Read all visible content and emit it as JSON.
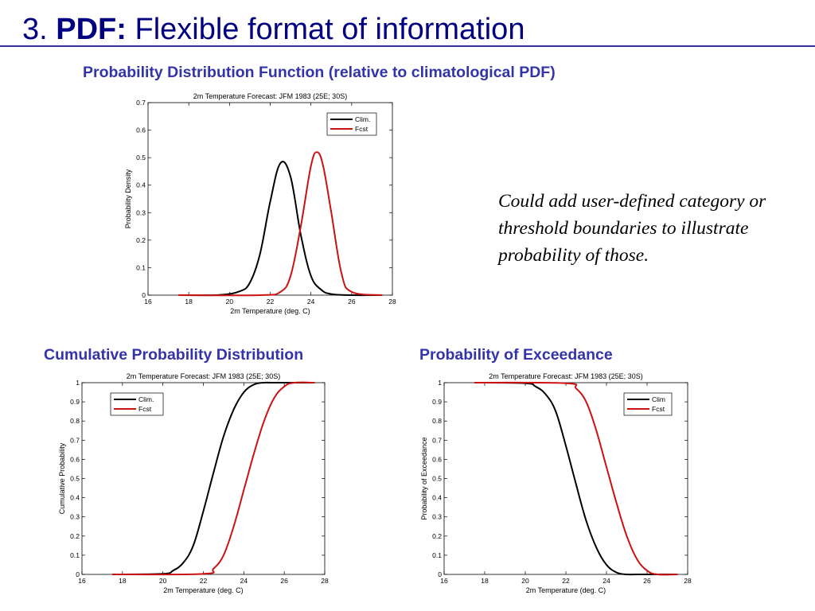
{
  "slide": {
    "number": "3.",
    "title_bold": "PDF:",
    "title_rest": " Flexible format of information",
    "note": "Could add user-defined category or threshold boundaries to illustrate probability of those."
  },
  "headings": {
    "pdf": "Probability Distribution Function (relative to climatological PDF)",
    "cdf": "Cumulative Probability Distribution",
    "exc": "Probability of Exceedance"
  },
  "colors": {
    "clim": "#000000",
    "fcst": "#cc1111",
    "accent": "#000080",
    "heading": "#3333aa"
  },
  "chart_data": [
    {
      "id": "pdf",
      "type": "line",
      "title": "2m Temperature Forecast: JFM 1983  (25E; 30S)",
      "xlabel": "2m Temperature (deg. C)",
      "ylabel": "Probability Density",
      "xlim": [
        16,
        28
      ],
      "ylim": [
        0,
        0.7
      ],
      "xticks": [
        16,
        18,
        20,
        22,
        24,
        26,
        28
      ],
      "yticks": [
        0,
        0.1,
        0.2,
        0.3,
        0.4,
        0.5,
        0.6,
        0.7
      ],
      "legend": {
        "position": "top-right",
        "entries": [
          "Clim.",
          "Fcst"
        ]
      },
      "series": [
        {
          "name": "Clim.",
          "color": "#000000",
          "x": [
            17.5,
            19.5,
            20.5,
            21,
            21.5,
            22,
            22.5,
            23,
            23.5,
            24,
            24.5,
            25,
            26,
            27.5
          ],
          "y": [
            0,
            0.001,
            0.014,
            0.045,
            0.15,
            0.34,
            0.48,
            0.43,
            0.22,
            0.07,
            0.02,
            0.004,
            0,
            0
          ]
        },
        {
          "name": "Fcst",
          "color": "#cc1111",
          "x": [
            17.5,
            21.5,
            22.5,
            23,
            23.5,
            24,
            24.3,
            24.6,
            25,
            25.5,
            26,
            27.5
          ],
          "y": [
            0,
            0,
            0.012,
            0.07,
            0.25,
            0.47,
            0.52,
            0.47,
            0.3,
            0.08,
            0.012,
            0
          ]
        }
      ]
    },
    {
      "id": "cdf",
      "type": "line",
      "title": "2m Temperature Forecast: JFM 1983 (25E; 30S)",
      "xlabel": "2m Temperature (deg. C)",
      "ylabel": "Cumulative Probability",
      "xlim": [
        16,
        28
      ],
      "ylim": [
        0,
        1
      ],
      "xticks": [
        16,
        18,
        20,
        22,
        24,
        26,
        28
      ],
      "yticks": [
        0,
        0.1,
        0.2,
        0.3,
        0.4,
        0.5,
        0.6,
        0.7,
        0.8,
        0.9,
        1
      ],
      "legend": {
        "position": "top-left",
        "entries": [
          "Clim.",
          "Fcst"
        ]
      },
      "series": [
        {
          "name": "Clim.",
          "color": "#000000",
          "x": [
            17.5,
            20,
            20.5,
            21,
            21.5,
            22,
            22.5,
            23,
            23.5,
            24,
            24.5,
            25,
            25.5,
            27.5
          ],
          "y": [
            0,
            0.003,
            0.02,
            0.06,
            0.15,
            0.33,
            0.53,
            0.72,
            0.86,
            0.95,
            0.99,
            1,
            1,
            1
          ]
        },
        {
          "name": "Fcst",
          "color": "#cc1111",
          "x": [
            17.5,
            22,
            22.5,
            23,
            23.5,
            24,
            24.5,
            25,
            25.5,
            26,
            26.5,
            27.5
          ],
          "y": [
            0,
            0.003,
            0.03,
            0.1,
            0.25,
            0.44,
            0.63,
            0.8,
            0.92,
            0.98,
            1,
            1
          ]
        }
      ]
    },
    {
      "id": "exc",
      "type": "line",
      "title": "2m Temperature Forecast: JFM 1983 (25E; 30S)",
      "xlabel": "2m Temperature (deg. C)",
      "ylabel": "Probability of Exceedance",
      "xlim": [
        16,
        28
      ],
      "ylim": [
        0,
        1
      ],
      "xticks": [
        16,
        18,
        20,
        22,
        24,
        26,
        28
      ],
      "yticks": [
        0,
        0.1,
        0.2,
        0.3,
        0.4,
        0.5,
        0.6,
        0.7,
        0.8,
        0.9,
        1
      ],
      "legend": {
        "position": "top-right",
        "entries": [
          "Clim",
          "Fcst"
        ]
      },
      "series": [
        {
          "name": "Clim",
          "color": "#000000",
          "x": [
            17.5,
            20,
            20.5,
            21,
            21.5,
            22,
            22.5,
            23,
            23.5,
            24,
            24.5,
            25,
            25.5,
            27.5
          ],
          "y": [
            1,
            0.997,
            0.98,
            0.94,
            0.85,
            0.67,
            0.47,
            0.28,
            0.14,
            0.05,
            0.01,
            0,
            0,
            0
          ]
        },
        {
          "name": "Fcst",
          "color": "#cc1111",
          "x": [
            17.5,
            22,
            22.5,
            23,
            23.5,
            24,
            24.5,
            25,
            25.5,
            26,
            26.5,
            27.5
          ],
          "y": [
            1,
            0.997,
            0.97,
            0.9,
            0.75,
            0.56,
            0.37,
            0.2,
            0.08,
            0.02,
            0,
            0
          ]
        }
      ]
    }
  ]
}
